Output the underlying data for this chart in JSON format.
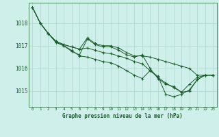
{
  "title": "Graphe pression niveau de la mer (hPa)",
  "bg_color": "#cff0ea",
  "grid_color": "#b8ddd6",
  "line_color": "#1a5c2a",
  "xlim": [
    -0.5,
    23.5
  ],
  "ylim": [
    1014.3,
    1018.9
  ],
  "yticks": [
    1015,
    1016,
    1017,
    1018
  ],
  "xticks": [
    0,
    1,
    2,
    3,
    4,
    5,
    6,
    7,
    8,
    9,
    10,
    11,
    12,
    13,
    14,
    15,
    16,
    17,
    18,
    19,
    20,
    21,
    22,
    23
  ],
  "series": [
    [
      1018.7,
      1018.0,
      1017.55,
      1017.2,
      1017.05,
      1016.95,
      1016.85,
      1017.35,
      1017.1,
      1017.0,
      1017.0,
      1016.9,
      1016.7,
      1016.55,
      1016.55,
      1016.5,
      1016.4,
      1016.3,
      1016.2,
      1016.1,
      1016.0,
      1015.7,
      1015.7,
      1015.7
    ],
    [
      1018.7,
      1018.0,
      1017.55,
      1017.2,
      1017.05,
      1016.95,
      1016.85,
      1016.9,
      1016.8,
      1016.7,
      1016.65,
      1016.55,
      1016.45,
      1016.3,
      1016.2,
      1015.9,
      1015.6,
      1015.35,
      1015.15,
      1014.95,
      1015.3,
      1015.6,
      1015.7,
      1015.7
    ],
    [
      1018.7,
      1018.0,
      1017.55,
      1017.15,
      1017.0,
      1016.8,
      1016.55,
      1016.5,
      1016.4,
      1016.3,
      1016.25,
      1016.1,
      1015.9,
      1015.7,
      1015.55,
      1015.9,
      1015.65,
      1014.85,
      1014.75,
      1014.85,
      1015.05,
      1015.5,
      1015.7,
      1015.7
    ],
    [
      1018.7,
      1018.0,
      1017.55,
      1017.15,
      1017.0,
      1016.75,
      1016.6,
      1017.3,
      1017.05,
      1016.95,
      1016.95,
      1016.8,
      1016.6,
      1016.5,
      1016.6,
      1016.0,
      1015.55,
      1015.3,
      1015.2,
      1014.95,
      1015.0,
      1015.5,
      1015.7,
      1015.7
    ]
  ]
}
